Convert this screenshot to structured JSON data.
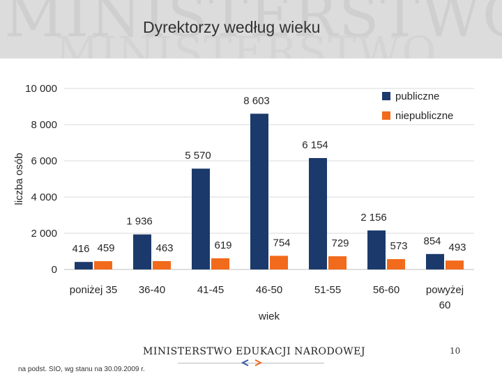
{
  "slide": {
    "title": "Dyrektorzy według wieku",
    "watermark_line1": "MINISTERSTWO",
    "watermark_line2": "MINISTERSTWO",
    "footer_logo": "MINISTERSTWO EDUKACJI NARODOWEJ",
    "page_number": "10",
    "source": "na podst. SIO, wg stanu na 30.09.2009 r."
  },
  "colors": {
    "publiczne": "#1b3a6b",
    "niepubliczne": "#f26a1b",
    "grid": "#d9d9d9",
    "text": "#262626"
  },
  "chart_data": {
    "type": "bar",
    "categories": [
      "poniżej 35",
      "36-40",
      "41-45",
      "46-50",
      "51-55",
      "56-60",
      "powyżej 60"
    ],
    "category_lines": [
      [
        "poniżej 35"
      ],
      [
        "36-40"
      ],
      [
        "41-45"
      ],
      [
        "46-50"
      ],
      [
        "51-55"
      ],
      [
        "56-60"
      ],
      [
        "powyżej",
        "60"
      ]
    ],
    "series": [
      {
        "name": "publiczne",
        "values": [
          416,
          1936,
          5570,
          8603,
          6154,
          2156,
          854
        ],
        "labels": [
          "416",
          "1 936",
          "5 570",
          "8 603",
          "6 154",
          "2 156",
          "854"
        ]
      },
      {
        "name": "niepubliczne",
        "values": [
          459,
          463,
          619,
          754,
          729,
          573,
          493
        ],
        "labels": [
          "459",
          "463",
          "619",
          "754",
          "729",
          "573",
          "493"
        ]
      }
    ],
    "xlabel": "wiek",
    "ylabel": "liczba osób",
    "ylim": [
      0,
      10000
    ],
    "yticks": [
      0,
      2000,
      4000,
      6000,
      8000,
      10000
    ],
    "ytick_labels": [
      "0",
      "2 000",
      "4 000",
      "6 000",
      "8 000",
      "10 000"
    ],
    "grid": true,
    "legend": "top-right"
  }
}
